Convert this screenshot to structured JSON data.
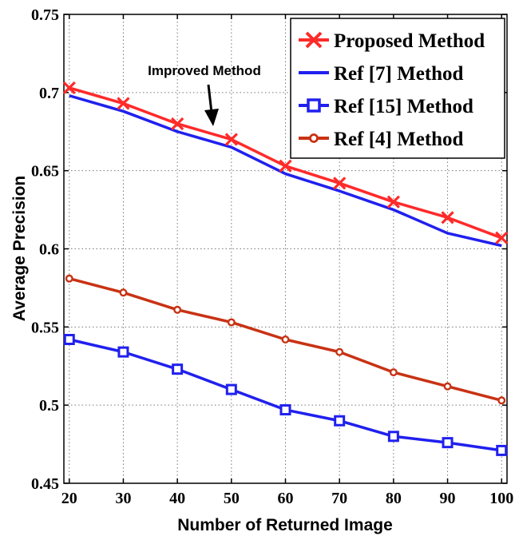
{
  "chart_data": {
    "type": "line",
    "title": "",
    "xlabel": "Number of Returned Image",
    "ylabel": "Average Precision",
    "x": [
      20,
      30,
      40,
      50,
      60,
      70,
      80,
      90,
      100
    ],
    "xticks": [
      "20",
      "30",
      "40",
      "50",
      "60",
      "70",
      "80",
      "90",
      "100"
    ],
    "yticks": [
      "0.45",
      "0.5",
      "0.55",
      "0.6",
      "0.65",
      "0.7",
      "0.75"
    ],
    "xlim": [
      19,
      101
    ],
    "ylim": [
      0.45,
      0.75
    ],
    "grid": true,
    "legend_position": "top-right",
    "annotation": "Improved Method",
    "series": [
      {
        "name": "Proposed Method",
        "color": "#ff2a2a",
        "marker": "x",
        "values": [
          0.703,
          0.693,
          0.68,
          0.67,
          0.653,
          0.642,
          0.63,
          0.62,
          0.607
        ]
      },
      {
        "name": "Ref [7] Method",
        "color": "#2020ee",
        "marker": "none",
        "values": [
          0.698,
          0.688,
          0.675,
          0.665,
          0.648,
          0.637,
          0.625,
          0.61,
          0.602
        ]
      },
      {
        "name": "Ref [15] Method",
        "color": "#2020ee",
        "marker": "square",
        "values": [
          0.542,
          0.534,
          0.523,
          0.51,
          0.497,
          0.49,
          0.48,
          0.476,
          0.471
        ]
      },
      {
        "name": "Ref [4] Method",
        "color": "#c83214",
        "marker": "circle",
        "values": [
          0.581,
          0.572,
          0.561,
          0.553,
          0.542,
          0.534,
          0.521,
          0.512,
          0.503
        ]
      }
    ]
  }
}
